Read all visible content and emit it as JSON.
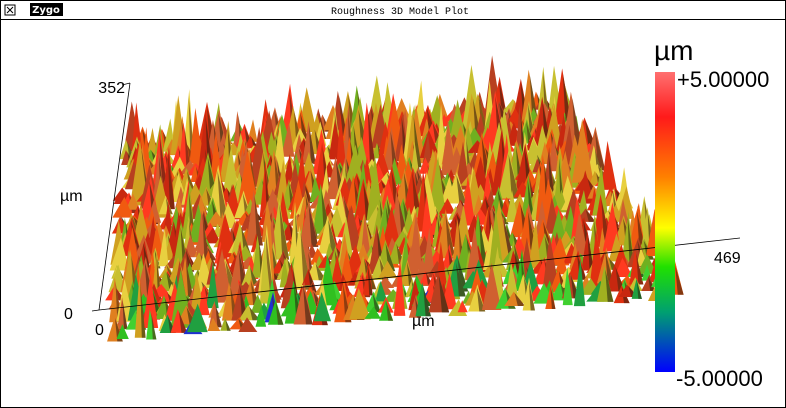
{
  "window": {
    "logo": "Zygo",
    "title": "Roughness 3D Model Plot"
  },
  "plot": {
    "y_axis": {
      "max_label": "352",
      "label": "µm",
      "min_label": "0"
    },
    "x_axis": {
      "min_label": "0",
      "label": "µm",
      "max_label": "469"
    },
    "colorbar": {
      "unit": "µm",
      "max_label": "+5.00000",
      "min_label": "-5.00000"
    }
  }
}
